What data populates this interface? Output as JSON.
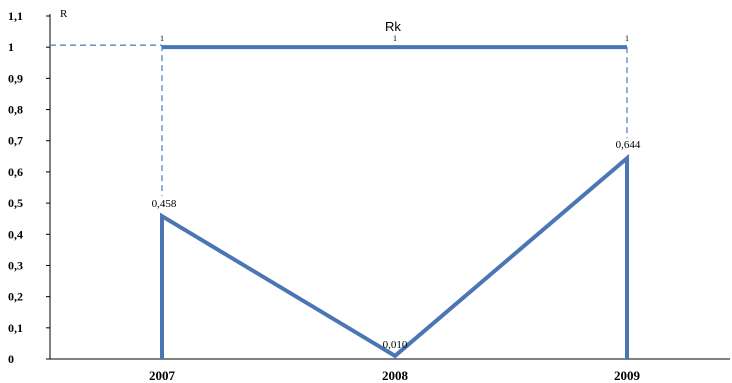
{
  "chart_data": {
    "type": "line",
    "ylabel": "R",
    "annotation": "Rk",
    "ylim": [
      0,
      1.1
    ],
    "yticks": [
      "0",
      "0,1",
      "0,2",
      "0,3",
      "0,4",
      "0,5",
      "0,6",
      "0,7",
      "0,8",
      "0,9",
      "1",
      "1,1"
    ],
    "categories": [
      "2007",
      "2008",
      "2009"
    ],
    "series": [
      {
        "values": [
          0.458,
          0.01,
          0.644
        ],
        "labels": [
          "0,458",
          "0,010",
          "0,644"
        ]
      },
      {
        "values": [
          1,
          1,
          1
        ],
        "labels": [
          "1",
          "1",
          "1"
        ]
      }
    ],
    "grid": false,
    "colors": {
      "line": "#4a76b5",
      "dash": "#5b86c2",
      "axis": "#000000"
    }
  }
}
